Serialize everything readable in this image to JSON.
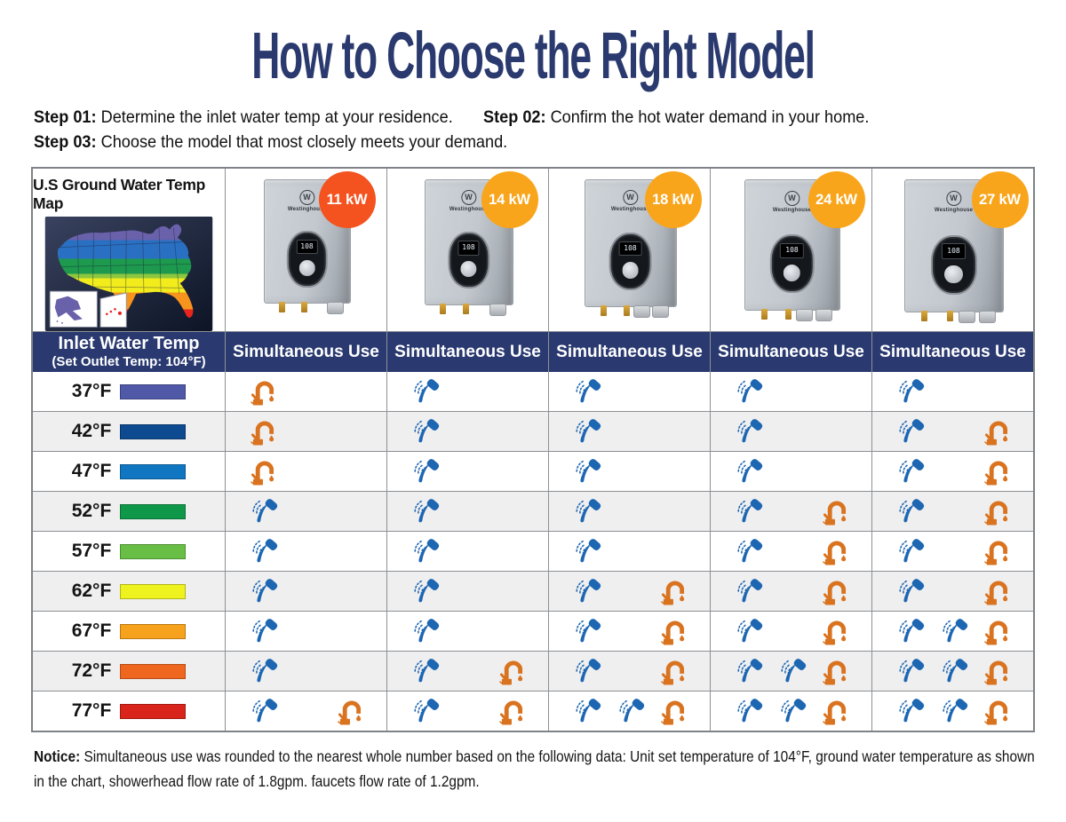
{
  "title": "How to Choose the Right Model",
  "steps": [
    {
      "label": "Step 01:",
      "text": "Determine the inlet water temp at your residence."
    },
    {
      "label": "Step 02:",
      "text": "Confirm the hot water demand in your home."
    },
    {
      "label": "Step 03:",
      "text": "Choose the model that most closely meets your demand."
    }
  ],
  "map": {
    "heading": "U.S Ground Water Temp Map"
  },
  "table": {
    "row_header": {
      "line1": "Inlet Water Temp",
      "line2": "(Set Outlet Temp: 104°F)"
    },
    "column_header": "Simultaneous Use",
    "models": [
      {
        "power": "11 kW",
        "badge_color": "#f4521e",
        "brand": "Westinghouse",
        "display": "108",
        "logo": "W"
      },
      {
        "power": "14 kW",
        "badge_color": "#f9a51b",
        "brand": "Westinghouse",
        "display": "108",
        "logo": "W"
      },
      {
        "power": "18 kW",
        "badge_color": "#f9a51b",
        "brand": "Westinghouse",
        "display": "108",
        "logo": "W"
      },
      {
        "power": "24 kW",
        "badge_color": "#f9a51b",
        "brand": "Westinghouse",
        "display": "108",
        "logo": "W"
      },
      {
        "power": "27 kW",
        "badge_color": "#f9a51b",
        "brand": "Westinghouse",
        "display": "108",
        "logo": "W"
      }
    ],
    "rows": [
      {
        "temp": "37°F",
        "swatch": "#5059a8",
        "cells": [
          {
            "showers": 0,
            "faucets": 1
          },
          {
            "showers": 1,
            "faucets": 0
          },
          {
            "showers": 1,
            "faucets": 0
          },
          {
            "showers": 1,
            "faucets": 0
          },
          {
            "showers": 1,
            "faucets": 0
          }
        ]
      },
      {
        "temp": "42°F",
        "swatch": "#0e4a8f",
        "cells": [
          {
            "showers": 0,
            "faucets": 1
          },
          {
            "showers": 1,
            "faucets": 0
          },
          {
            "showers": 1,
            "faucets": 0
          },
          {
            "showers": 1,
            "faucets": 0
          },
          {
            "showers": 1,
            "faucets": 1
          }
        ]
      },
      {
        "temp": "47°F",
        "swatch": "#1076c2",
        "cells": [
          {
            "showers": 0,
            "faucets": 1
          },
          {
            "showers": 1,
            "faucets": 0
          },
          {
            "showers": 1,
            "faucets": 0
          },
          {
            "showers": 1,
            "faucets": 0
          },
          {
            "showers": 1,
            "faucets": 1
          }
        ]
      },
      {
        "temp": "52°F",
        "swatch": "#0f9849",
        "cells": [
          {
            "showers": 1,
            "faucets": 0
          },
          {
            "showers": 1,
            "faucets": 0
          },
          {
            "showers": 1,
            "faucets": 0
          },
          {
            "showers": 1,
            "faucets": 1
          },
          {
            "showers": 1,
            "faucets": 1
          }
        ]
      },
      {
        "temp": "57°F",
        "swatch": "#69bf45",
        "cells": [
          {
            "showers": 1,
            "faucets": 0
          },
          {
            "showers": 1,
            "faucets": 0
          },
          {
            "showers": 1,
            "faucets": 0
          },
          {
            "showers": 1,
            "faucets": 1
          },
          {
            "showers": 1,
            "faucets": 1
          }
        ]
      },
      {
        "temp": "62°F",
        "swatch": "#eef21e",
        "cells": [
          {
            "showers": 1,
            "faucets": 0
          },
          {
            "showers": 1,
            "faucets": 0
          },
          {
            "showers": 1,
            "faucets": 1
          },
          {
            "showers": 1,
            "faucets": 1
          },
          {
            "showers": 1,
            "faucets": 1
          }
        ]
      },
      {
        "temp": "67°F",
        "swatch": "#f7a21c",
        "cells": [
          {
            "showers": 1,
            "faucets": 0
          },
          {
            "showers": 1,
            "faucets": 0
          },
          {
            "showers": 1,
            "faucets": 1
          },
          {
            "showers": 1,
            "faucets": 1
          },
          {
            "showers": 2,
            "faucets": 1
          }
        ]
      },
      {
        "temp": "72°F",
        "swatch": "#ef671f",
        "cells": [
          {
            "showers": 1,
            "faucets": 0
          },
          {
            "showers": 1,
            "faucets": 1
          },
          {
            "showers": 1,
            "faucets": 1
          },
          {
            "showers": 2,
            "faucets": 1
          },
          {
            "showers": 2,
            "faucets": 1
          }
        ]
      },
      {
        "temp": "77°F",
        "swatch": "#d8241a",
        "cells": [
          {
            "showers": 1,
            "faucets": 1
          },
          {
            "showers": 1,
            "faucets": 1
          },
          {
            "showers": 2,
            "faucets": 1
          },
          {
            "showers": 2,
            "faucets": 1
          },
          {
            "showers": 2,
            "faucets": 1
          }
        ]
      }
    ]
  },
  "notice": {
    "label": "Notice:",
    "text": "Simultaneous use was rounded to the nearest whole number based on the following data: Unit set temperature of 104°F, ground water temperature as shown in the chart, showerhead flow rate of 1.8gpm. faucets flow rate of 1.2gpm."
  },
  "colors": {
    "navy": "#2a3a70",
    "title": "#2b3a6e",
    "shower_icon": "#1c66b2",
    "faucet_icon": "#d9731f",
    "badge_red": "#f4521e",
    "badge_amber": "#f9a51b"
  }
}
